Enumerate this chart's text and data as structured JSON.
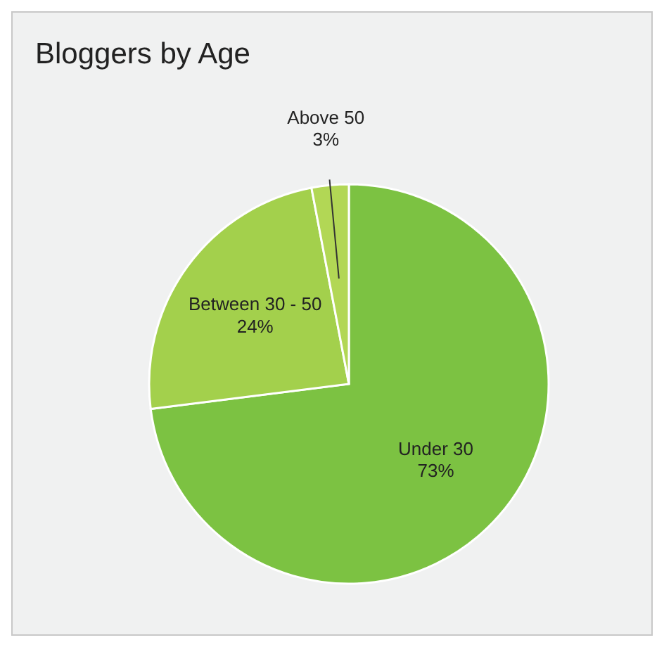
{
  "chart_data": {
    "type": "pie",
    "title": "Bloggers by Age",
    "categories": [
      "Under 30",
      "Between 30 - 50",
      "Above 50"
    ],
    "values": [
      73,
      24,
      3
    ],
    "value_labels": [
      "73%",
      "24%",
      "3%"
    ],
    "colors": [
      "#7cc242",
      "#a3d04c",
      "#b2d755"
    ],
    "legend": false
  }
}
